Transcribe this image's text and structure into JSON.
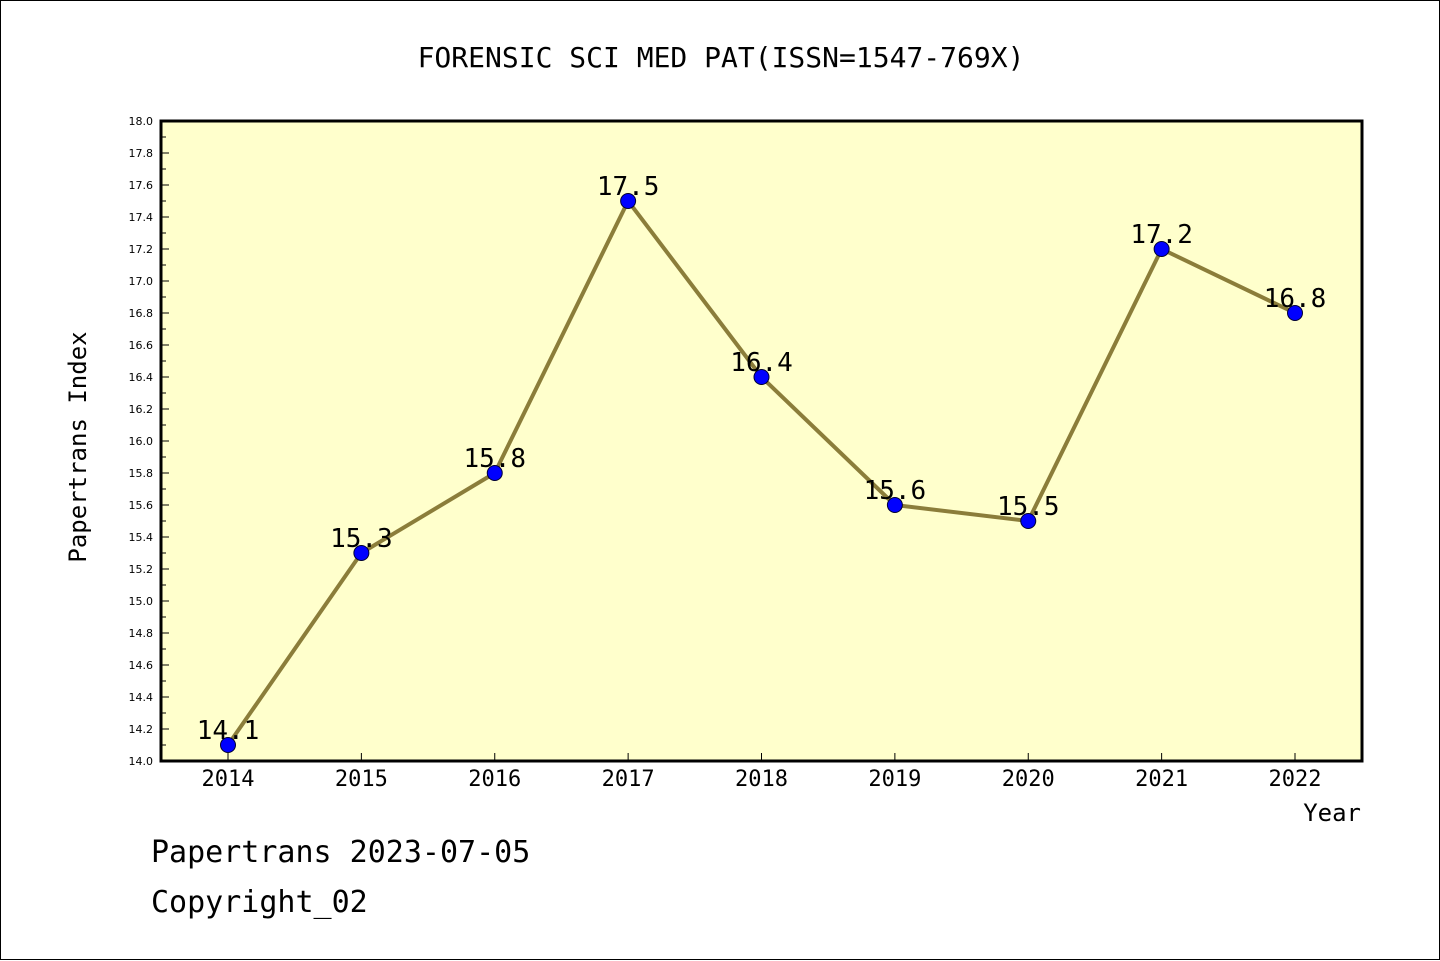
{
  "chart_data": {
    "type": "line",
    "title": "FORENSIC SCI MED PAT(ISSN=1547-769X)",
    "xlabel": "Year",
    "ylabel": "Papertrans Index",
    "categories": [
      "2014",
      "2015",
      "2016",
      "2017",
      "2018",
      "2019",
      "2020",
      "2021",
      "2022"
    ],
    "series": [
      {
        "values": [
          14.1,
          15.3,
          15.8,
          17.5,
          16.4,
          15.6,
          15.5,
          17.2,
          16.8
        ],
        "labels": [
          "14.1",
          "15.3",
          "15.8",
          "17.5",
          "16.4",
          "15.6",
          "15.5",
          "17.2",
          "16.8"
        ]
      }
    ],
    "ylim": [
      14.0,
      18.0
    ],
    "yticks": [
      "14.0",
      "14.2",
      "14.4",
      "14.6",
      "14.8",
      "15.0",
      "15.2",
      "15.4",
      "15.6",
      "15.8",
      "16.0",
      "16.2",
      "16.4",
      "16.6",
      "16.8",
      "17.0",
      "17.2",
      "17.4",
      "17.6",
      "17.8",
      "18.0"
    ],
    "grid": false,
    "colors": {
      "plot_background": "#ffffcc",
      "line": "#8b7d3a",
      "marker": "#0000ff"
    }
  },
  "footer": {
    "date_text": "Papertrans 2023-07-05",
    "copyright_text": "Copyright_02"
  }
}
